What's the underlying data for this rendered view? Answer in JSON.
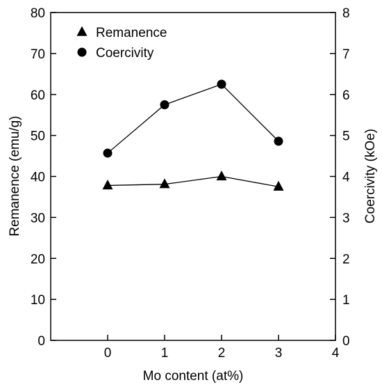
{
  "chart_data": {
    "type": "line",
    "title": "",
    "xlabel": "Mo content (at%)",
    "ylabel": "Remanence (emu/g)",
    "y2label": "Coercivity (kOe)",
    "xlim": [
      -1,
      4
    ],
    "ylim": [
      0,
      80
    ],
    "y2lim": [
      0,
      8
    ],
    "x_ticks": [
      0,
      1,
      2,
      3,
      4
    ],
    "y_ticks": [
      0,
      10,
      20,
      30,
      40,
      50,
      60,
      70,
      80
    ],
    "y2_ticks": [
      0,
      1,
      2,
      3,
      4,
      5,
      6,
      7,
      8
    ],
    "grid": false,
    "legend_position": "top-left",
    "x": [
      0,
      1,
      2,
      3
    ],
    "series": [
      {
        "name": "Remanence",
        "axis": "left",
        "marker": "triangle",
        "values": [
          37.8,
          38.1,
          40.0,
          37.5
        ]
      },
      {
        "name": "Coercivity",
        "axis": "right",
        "marker": "circle",
        "values": [
          4.57,
          5.75,
          6.25,
          4.86
        ]
      }
    ]
  }
}
